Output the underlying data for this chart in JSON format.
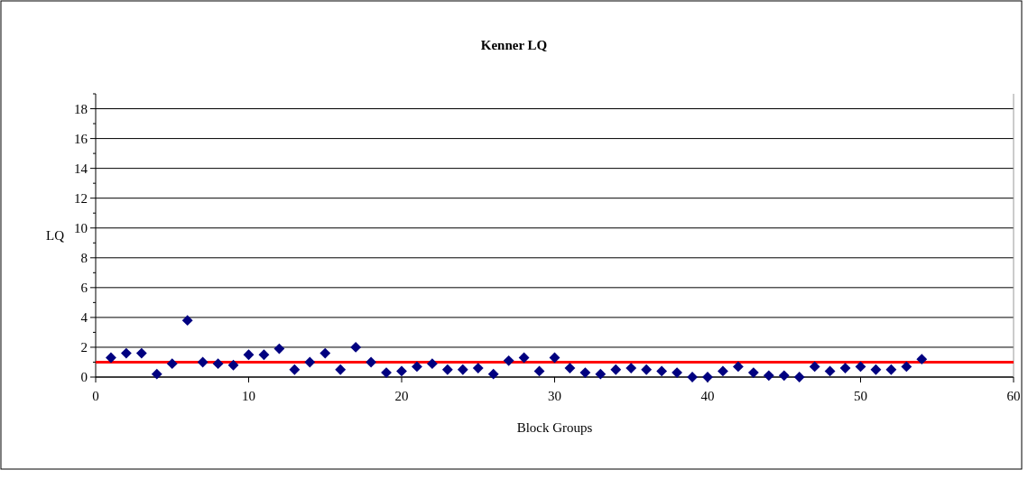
{
  "chart_data": {
    "type": "scatter",
    "title": "Kenner LQ",
    "xlabel": "Block Groups",
    "ylabel": "LQ",
    "x": [
      1,
      2,
      3,
      4,
      5,
      6,
      7,
      8,
      9,
      10,
      11,
      12,
      13,
      14,
      15,
      16,
      17,
      18,
      19,
      20,
      21,
      22,
      23,
      24,
      25,
      26,
      27,
      28,
      29,
      30,
      31,
      32,
      33,
      34,
      35,
      36,
      37,
      38,
      39,
      40,
      41,
      42,
      43,
      44,
      45,
      46,
      47,
      48,
      49,
      50,
      51,
      52,
      53,
      54
    ],
    "series": [
      {
        "color": "#000080",
        "values": [
          1.3,
          1.6,
          1.6,
          0.2,
          0.9,
          3.8,
          1.0,
          0.9,
          0.8,
          1.5,
          1.5,
          1.9,
          0.5,
          1.0,
          1.6,
          0.5,
          2.0,
          1.0,
          0.3,
          0.4,
          0.7,
          0.9,
          0.5,
          0.5,
          0.6,
          0.2,
          1.1,
          1.3,
          0.4,
          1.3,
          0.6,
          0.3,
          0.2,
          0.5,
          0.6,
          0.5,
          0.4,
          0.3,
          0.0,
          0.0,
          0.4,
          0.7,
          0.3,
          0.1,
          0.1,
          0.0,
          0.7,
          0.4,
          0.6,
          0.7,
          0.5,
          0.5,
          0.7,
          1.2
        ]
      }
    ],
    "marker": "diamond",
    "xlim": [
      0,
      60
    ],
    "xticks": [
      0,
      10,
      20,
      30,
      40,
      50,
      60
    ],
    "ylim": [
      0,
      19
    ],
    "yticks": [
      0,
      {
        "value": 1,
        "label": null
      },
      2,
      {
        "value": 3,
        "label": null
      },
      4,
      {
        "value": 5,
        "label": null
      },
      6,
      {
        "value": 7,
        "label": null
      },
      8,
      {
        "value": 9,
        "label": null
      },
      10,
      {
        "value": 11,
        "label": null
      },
      12,
      {
        "value": 13,
        "label": null
      },
      14,
      {
        "value": 15,
        "label": null
      },
      16,
      {
        "value": 17,
        "label": null
      },
      18,
      {
        "value": 19,
        "label": null
      }
    ],
    "grid": "y",
    "ref_lines": [
      {
        "axis": "y",
        "value": 1.0,
        "color": "#ff0000",
        "line_style": "solid"
      }
    ]
  }
}
